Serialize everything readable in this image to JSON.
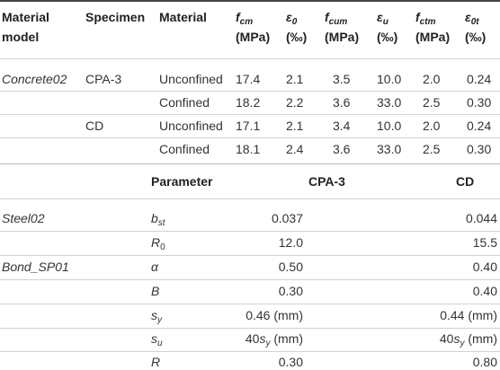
{
  "table1": {
    "headers": {
      "material_model": [
        "Material",
        "model"
      ],
      "specimen": "Specimen",
      "material": "Material",
      "fcm": {
        "sym": "f",
        "sub": "cm",
        "unit": "(MPa)"
      },
      "eps0": {
        "sym": "ε",
        "sub": "0",
        "unit": "(‰)"
      },
      "fcum": {
        "sym": "f",
        "sub": "cum",
        "unit": "(MPa)"
      },
      "epsu": {
        "sym": "ε",
        "sub": "u",
        "unit": "(‰)"
      },
      "fctm": {
        "sym": "f",
        "sub": "ctm",
        "unit": "(MPa)"
      },
      "eps0t": {
        "sym": "ε",
        "sub": "0t",
        "unit": "(‰)"
      }
    },
    "model": "Concrete02",
    "rows": [
      {
        "specimen": "CPA-3",
        "material": "Unconfined",
        "fcm": "17.4",
        "eps0": "2.1",
        "fcum": "3.5",
        "epsu": "10.0",
        "fctm": "2.0",
        "eps0t": "0.24"
      },
      {
        "specimen": "",
        "material": "Confined",
        "fcm": "18.2",
        "eps0": "2.2",
        "fcum": "3.6",
        "epsu": "33.0",
        "fctm": "2.5",
        "eps0t": "0.30"
      },
      {
        "specimen": "CD",
        "material": "Unconfined",
        "fcm": "17.1",
        "eps0": "2.1",
        "fcum": "3.4",
        "epsu": "10.0",
        "fctm": "2.0",
        "eps0t": "0.24"
      },
      {
        "specimen": "",
        "material": "Confined",
        "fcm": "18.1",
        "eps0": "2.4",
        "fcum": "3.6",
        "epsu": "33.0",
        "fctm": "2.5",
        "eps0t": "0.30"
      }
    ]
  },
  "table2": {
    "headers": {
      "parameter": "Parameter",
      "cpa3": "CPA-3",
      "cd": "CD"
    },
    "rows": [
      {
        "model": "Steel02",
        "param": "b",
        "param_sub": "st",
        "cpa3": "0.037",
        "cd": "0.044"
      },
      {
        "model": "",
        "param": "R",
        "param_sub": "0",
        "cpa3": "12.0",
        "cd": "15.5"
      },
      {
        "model": "Bond_SP01",
        "param": "α",
        "param_sub": "",
        "cpa3": "0.50",
        "cd": "0.40"
      },
      {
        "model": "",
        "param": "B",
        "param_sub": "",
        "cpa3": "0.30",
        "cd": "0.40"
      },
      {
        "model": "",
        "param": "s",
        "param_sub": "y",
        "cpa3": "0.46 (mm)",
        "cd": "0.44 (mm)"
      },
      {
        "model": "",
        "param": "s",
        "param_sub": "u",
        "cpa3_pre": "40",
        "cpa3_sym": "s",
        "cpa3_sub": "y",
        "cpa3_post": " (mm)",
        "cd_pre": "40",
        "cd_sym": "s",
        "cd_sub": "y",
        "cd_post": " (mm)"
      },
      {
        "model": "",
        "param": "R",
        "param_sub": "",
        "cpa3": "0.30",
        "cd": "0.80"
      }
    ]
  }
}
